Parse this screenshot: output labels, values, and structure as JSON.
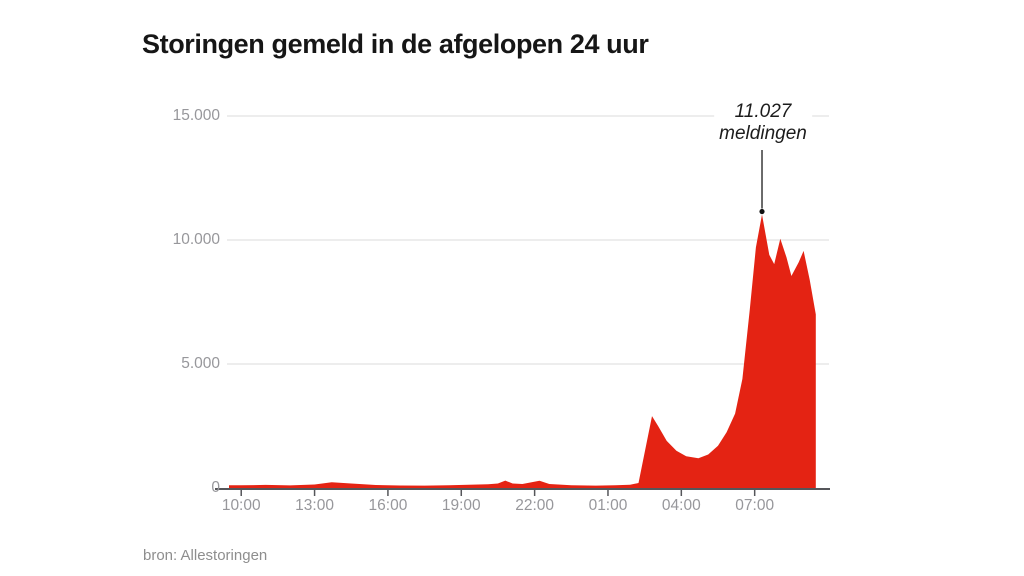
{
  "title": "Storingen gemeld in de afgelopen 24 uur",
  "source": "bron: Allestoringen",
  "chart_data": {
    "type": "area",
    "title": "Storingen gemeld in de afgelopen 24 uur",
    "xlabel": "",
    "ylabel": "",
    "x_encoding": "hours since ~09:30 (24-hour window), ticks every 3 hours",
    "ylim": [
      0,
      15000
    ],
    "grid": "horizontal gridlines only, legend none",
    "yticks": [
      {
        "value": 0,
        "label": "0"
      },
      {
        "value": 5000,
        "label": "5.000"
      },
      {
        "value": 10000,
        "label": "10.000"
      },
      {
        "value": 15000,
        "label": "15.000"
      }
    ],
    "xticks": [
      {
        "h": 0.5,
        "label": "10:00"
      },
      {
        "h": 3.5,
        "label": "13:00"
      },
      {
        "h": 6.5,
        "label": "16:00"
      },
      {
        "h": 9.5,
        "label": "19:00"
      },
      {
        "h": 12.5,
        "label": "22:00"
      },
      {
        "h": 15.5,
        "label": "01:00"
      },
      {
        "h": 18.5,
        "label": "04:00"
      },
      {
        "h": 21.5,
        "label": "07:00"
      }
    ],
    "points": [
      [
        0,
        110
      ],
      [
        0.5,
        110
      ],
      [
        1.5,
        125
      ],
      [
        2.5,
        105
      ],
      [
        3.5,
        140
      ],
      [
        4.2,
        230
      ],
      [
        5,
        180
      ],
      [
        6,
        120
      ],
      [
        7,
        100
      ],
      [
        8,
        95
      ],
      [
        9,
        110
      ],
      [
        9.8,
        130
      ],
      [
        10.6,
        150
      ],
      [
        11,
        180
      ],
      [
        11.3,
        300
      ],
      [
        11.6,
        180
      ],
      [
        12,
        160
      ],
      [
        12.7,
        290
      ],
      [
        13.1,
        160
      ],
      [
        14,
        110
      ],
      [
        15,
        95
      ],
      [
        15.8,
        110
      ],
      [
        16.4,
        130
      ],
      [
        16.75,
        200
      ],
      [
        17.3,
        2900
      ],
      [
        17.55,
        2500
      ],
      [
        17.9,
        1900
      ],
      [
        18.3,
        1500
      ],
      [
        18.7,
        1280
      ],
      [
        19.2,
        1200
      ],
      [
        19.6,
        1350
      ],
      [
        20,
        1700
      ],
      [
        20.35,
        2250
      ],
      [
        20.7,
        3000
      ],
      [
        21,
        4400
      ],
      [
        21.3,
        7200
      ],
      [
        21.55,
        9700
      ],
      [
        21.8,
        11027
      ],
      [
        22.1,
        9400
      ],
      [
        22.3,
        9030
      ],
      [
        22.55,
        10050
      ],
      [
        22.8,
        9300
      ],
      [
        23,
        8550
      ],
      [
        23.3,
        9100
      ],
      [
        23.5,
        9560
      ],
      [
        23.75,
        8400
      ],
      [
        24,
        7000
      ]
    ],
    "annotation": {
      "line1": "11.027",
      "line2": "meldingen",
      "h": 21.8,
      "value": 11027
    },
    "colors": {
      "area": "#e42313",
      "gridline": "#e7e7e7",
      "axis": "#55565a",
      "tick_label": "#97979b",
      "annotation_line": "#3a3a3a",
      "annotation_dot": "#111111",
      "title": "#161616",
      "source": "#8e8e8e"
    }
  }
}
